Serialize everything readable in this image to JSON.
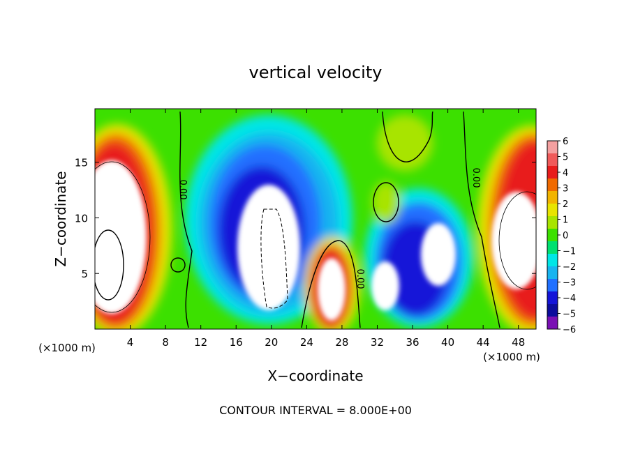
{
  "chart_data": {
    "type": "heatmap",
    "title": "vertical velocity",
    "xlabel": "X−coordinate",
    "ylabel": "Z−coordinate",
    "x_unit": "(×1000 m)",
    "x_ticks": [
      4,
      8,
      12,
      16,
      20,
      24,
      28,
      32,
      36,
      40,
      44,
      48
    ],
    "y_ticks": [
      5,
      10,
      15
    ],
    "xlim": [
      0,
      50
    ],
    "ylim": [
      0,
      19.8
    ],
    "colorbar": {
      "levels": [
        6,
        5,
        4,
        3,
        2,
        1,
        0,
        -1,
        -2,
        -3,
        -4,
        -5,
        -6
      ],
      "labels": [
        "6",
        "5",
        "4",
        "3",
        "2",
        "1",
        "0",
        "−1",
        "−2",
        "−3",
        "−4",
        "−5",
        "−6"
      ],
      "colors": [
        "#f4a0a0",
        "#f05a5a",
        "#e81c1c",
        "#f06a00",
        "#f2b400",
        "#e8e400",
        "#a8e400",
        "#3ce000",
        "#00e070",
        "#00e6e6",
        "#18b4f0",
        "#2070ff",
        "#1414d8",
        "#0c0c9c",
        "#7a10b4"
      ]
    },
    "contour_label": "0.00",
    "contour_interval_text": "CONTOUR INTERVAL = 8.000E+00"
  }
}
